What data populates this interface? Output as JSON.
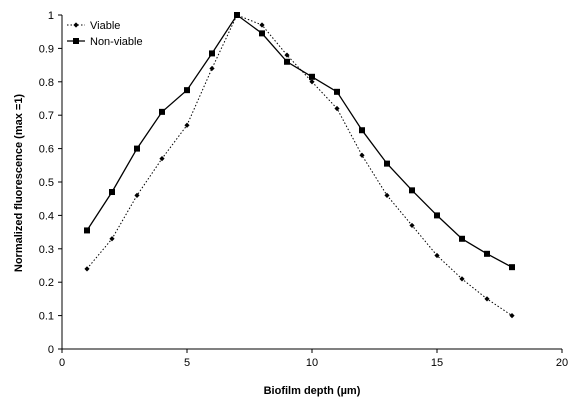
{
  "chart_data": {
    "type": "line",
    "title": "",
    "xlabel": "Biofilm depth (µm)",
    "ylabel": "Normalized fluorescence (max =1)",
    "xlim": [
      0,
      20
    ],
    "ylim": [
      0,
      1
    ],
    "xticks": [
      0,
      5,
      10,
      15,
      20
    ],
    "yticks": [
      0,
      0.1,
      0.2,
      0.3,
      0.4,
      0.5,
      0.6,
      0.7,
      0.8,
      0.9,
      1
    ],
    "grid": false,
    "legend_position": "top-left",
    "x": [
      1,
      2,
      3,
      4,
      5,
      6,
      7,
      8,
      9,
      10,
      11,
      12,
      13,
      14,
      15,
      16,
      17,
      18
    ],
    "series": [
      {
        "name": "Viable",
        "line_style": "dotted",
        "marker": "diamond",
        "color": "#000000",
        "values": [
          0.24,
          0.33,
          0.46,
          0.57,
          0.67,
          0.84,
          1.0,
          0.97,
          0.88,
          0.8,
          0.72,
          0.58,
          0.46,
          0.37,
          0.28,
          0.21,
          0.15,
          0.1
        ]
      },
      {
        "name": "Non-viable",
        "line_style": "solid",
        "marker": "square",
        "color": "#000000",
        "values": [
          0.355,
          0.47,
          0.6,
          0.71,
          0.775,
          0.885,
          1.0,
          0.945,
          0.86,
          0.815,
          0.77,
          0.655,
          0.555,
          0.475,
          0.4,
          0.33,
          0.285,
          0.245
        ]
      }
    ]
  }
}
